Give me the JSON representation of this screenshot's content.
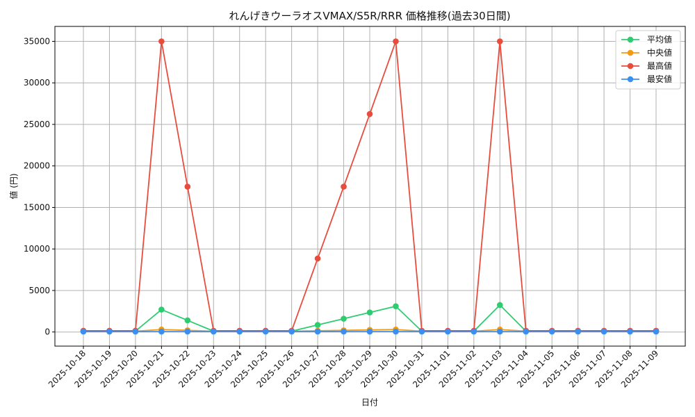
{
  "chart_data": {
    "type": "line",
    "title": "れんげきウーラオスVMAX/S5R/RRR 価格推移(過去30日間)",
    "xlabel": "日付",
    "ylabel": "値 (円)",
    "categories": [
      "2025-10-18",
      "2025-10-19",
      "2025-10-20",
      "2025-10-21",
      "2025-10-22",
      "2025-10-23",
      "2025-10-24",
      "2025-10-25",
      "2025-10-26",
      "2025-10-27",
      "2025-10-28",
      "2025-10-29",
      "2025-10-30",
      "2025-10-31",
      "2025-11-01",
      "2025-11-02",
      "2025-11-03",
      "2025-11-04",
      "2025-11-05",
      "2025-11-06",
      "2025-11-07",
      "2025-11-08",
      "2025-11-09"
    ],
    "ylim": [
      -1700,
      36800
    ],
    "yticks": [
      0,
      5000,
      10000,
      15000,
      20000,
      25000,
      30000,
      35000
    ],
    "grid": true,
    "legend_position": "top-right",
    "series": [
      {
        "name": "平均値",
        "color": "#2ecc71",
        "values": [
          100,
          100,
          100,
          2700,
          1400,
          100,
          100,
          100,
          100,
          850,
          1600,
          2350,
          3100,
          100,
          100,
          100,
          3250,
          100,
          100,
          100,
          100,
          100,
          100
        ]
      },
      {
        "name": "中央値",
        "color": "#f39c12",
        "values": [
          100,
          100,
          100,
          300,
          200,
          100,
          100,
          100,
          100,
          150,
          200,
          250,
          300,
          100,
          100,
          100,
          300,
          100,
          100,
          100,
          100,
          100,
          100
        ]
      },
      {
        "name": "最高値",
        "color": "#e74c3c",
        "values": [
          150,
          150,
          150,
          35000,
          17500,
          150,
          150,
          150,
          150,
          8850,
          17500,
          26250,
          35000,
          150,
          150,
          150,
          35000,
          150,
          150,
          150,
          150,
          150,
          150
        ]
      },
      {
        "name": "最安値",
        "color": "#3b8ff0",
        "values": [
          50,
          50,
          50,
          50,
          50,
          50,
          50,
          50,
          50,
          50,
          50,
          50,
          50,
          50,
          50,
          50,
          50,
          50,
          50,
          50,
          50,
          50,
          50
        ]
      }
    ]
  }
}
